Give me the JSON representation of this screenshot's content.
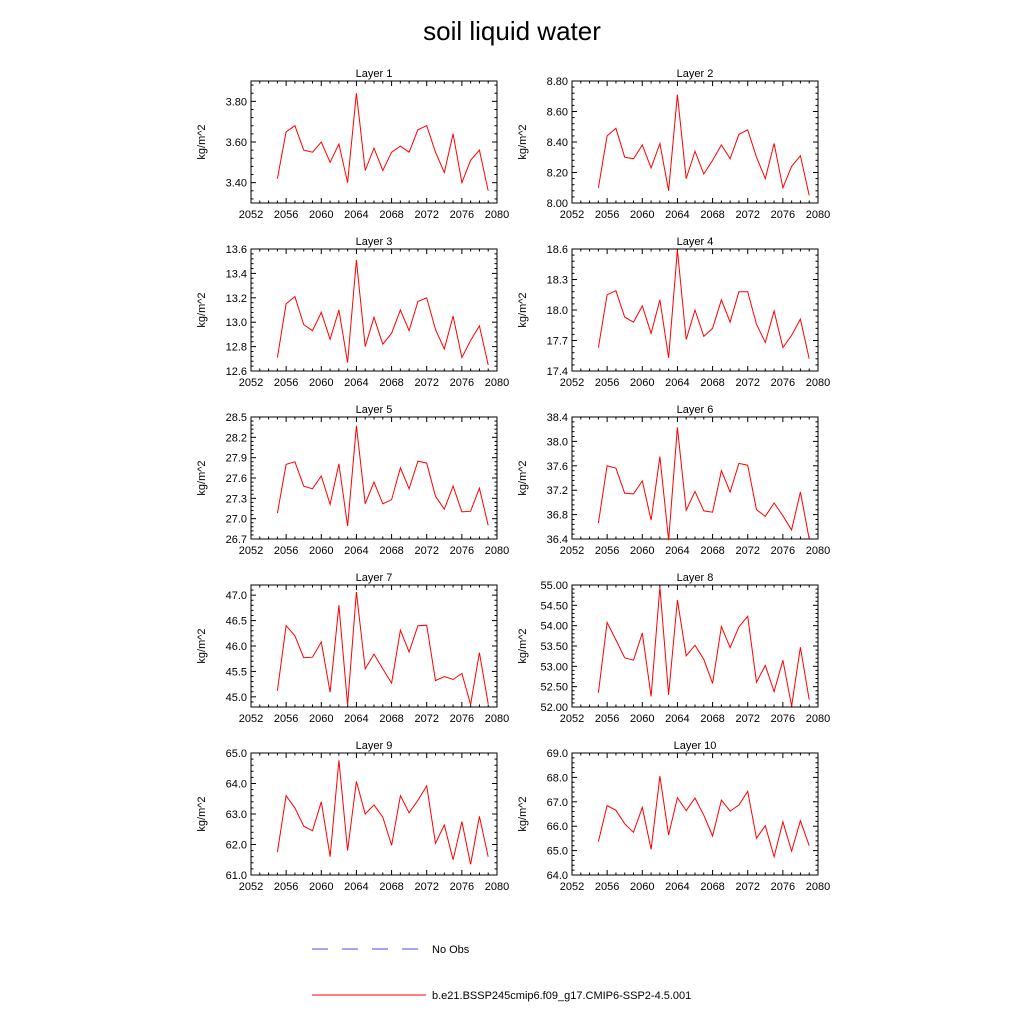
{
  "title": "soil liquid water",
  "legend": {
    "position": "bottom-center",
    "entries": [
      {
        "label": "No Obs",
        "color": "#4a4ae0",
        "style": "dashed"
      },
      {
        "label": "b.e21.BSSP245cmip6.f09_g17.CMIP6-SSP2-4.5.001",
        "color": "#ff0000",
        "style": "solid"
      }
    ]
  },
  "chart_data": [
    {
      "type": "line",
      "title": "Layer 1",
      "ylabel": "kg/m^2",
      "xlim": [
        2052,
        2080
      ],
      "xticks": [
        2052,
        2056,
        2060,
        2064,
        2068,
        2072,
        2076,
        2080
      ],
      "ylim": [
        3.3,
        3.9
      ],
      "yticks": [
        3.4,
        3.6,
        3.8
      ],
      "ydecimals": 2,
      "x": [
        2055,
        2056,
        2057,
        2058,
        2059,
        2060,
        2061,
        2062,
        2063,
        2064,
        2065,
        2066,
        2067,
        2068,
        2069,
        2070,
        2071,
        2072,
        2073,
        2074,
        2075,
        2076,
        2077,
        2078,
        2079
      ],
      "series": [
        {
          "color": "#ff0000",
          "values": [
            3.42,
            3.65,
            3.68,
            3.56,
            3.55,
            3.6,
            3.5,
            3.59,
            3.4,
            3.84,
            3.46,
            3.57,
            3.46,
            3.55,
            3.58,
            3.55,
            3.66,
            3.68,
            3.55,
            3.45,
            3.64,
            3.4,
            3.51,
            3.56,
            3.36
          ]
        }
      ]
    },
    {
      "type": "line",
      "title": "Layer 2",
      "ylabel": "kg/m^2",
      "xlim": [
        2052,
        2080
      ],
      "xticks": [
        2052,
        2056,
        2060,
        2064,
        2068,
        2072,
        2076,
        2080
      ],
      "ylim": [
        8.0,
        8.8
      ],
      "yticks": [
        8.0,
        8.2,
        8.4,
        8.6,
        8.8
      ],
      "ydecimals": 2,
      "x": [
        2055,
        2056,
        2057,
        2058,
        2059,
        2060,
        2061,
        2062,
        2063,
        2064,
        2065,
        2066,
        2067,
        2068,
        2069,
        2070,
        2071,
        2072,
        2073,
        2074,
        2075,
        2076,
        2077,
        2078,
        2079
      ],
      "series": [
        {
          "color": "#ff0000",
          "values": [
            8.1,
            8.44,
            8.49,
            8.3,
            8.29,
            8.38,
            8.23,
            8.39,
            8.08,
            8.71,
            8.16,
            8.34,
            8.19,
            8.28,
            8.38,
            8.29,
            8.45,
            8.48,
            8.3,
            8.16,
            8.39,
            8.1,
            8.24,
            8.31,
            8.05
          ]
        }
      ]
    },
    {
      "type": "line",
      "title": "Layer 3",
      "ylabel": "kg/m^2",
      "xlim": [
        2052,
        2080
      ],
      "xticks": [
        2052,
        2056,
        2060,
        2064,
        2068,
        2072,
        2076,
        2080
      ],
      "ylim": [
        12.6,
        13.6
      ],
      "yticks": [
        12.6,
        12.8,
        13.0,
        13.2,
        13.4,
        13.6
      ],
      "ydecimals": 1,
      "x": [
        2055,
        2056,
        2057,
        2058,
        2059,
        2060,
        2061,
        2062,
        2063,
        2064,
        2065,
        2066,
        2067,
        2068,
        2069,
        2070,
        2071,
        2072,
        2073,
        2074,
        2075,
        2076,
        2077,
        2078,
        2079
      ],
      "series": [
        {
          "color": "#ff0000",
          "values": [
            12.71,
            13.15,
            13.21,
            12.98,
            12.93,
            13.08,
            12.86,
            13.1,
            12.67,
            13.51,
            12.8,
            13.04,
            12.82,
            12.91,
            13.1,
            12.93,
            13.17,
            13.2,
            12.94,
            12.78,
            13.05,
            12.71,
            12.85,
            12.97,
            12.65
          ]
        }
      ]
    },
    {
      "type": "line",
      "title": "Layer 4",
      "ylabel": "kg/m^2",
      "xlim": [
        2052,
        2080
      ],
      "xticks": [
        2052,
        2056,
        2060,
        2064,
        2068,
        2072,
        2076,
        2080
      ],
      "ylim": [
        17.4,
        18.6
      ],
      "yticks": [
        17.4,
        17.7,
        18.0,
        18.3,
        18.6
      ],
      "ydecimals": 1,
      "x": [
        2055,
        2056,
        2057,
        2058,
        2059,
        2060,
        2061,
        2062,
        2063,
        2064,
        2065,
        2066,
        2067,
        2068,
        2069,
        2070,
        2071,
        2072,
        2073,
        2074,
        2075,
        2076,
        2077,
        2078,
        2079
      ],
      "series": [
        {
          "color": "#ff0000",
          "values": [
            17.63,
            18.15,
            18.19,
            17.93,
            17.88,
            18.04,
            17.77,
            18.1,
            17.53,
            18.59,
            17.71,
            18.0,
            17.74,
            17.82,
            18.1,
            17.88,
            18.18,
            18.18,
            17.86,
            17.68,
            17.99,
            17.63,
            17.75,
            17.91,
            17.52
          ]
        }
      ]
    },
    {
      "type": "line",
      "title": "Layer 5",
      "ylabel": "kg/m^2",
      "xlim": [
        2052,
        2080
      ],
      "xticks": [
        2052,
        2056,
        2060,
        2064,
        2068,
        2072,
        2076,
        2080
      ],
      "ylim": [
        26.7,
        28.5
      ],
      "yticks": [
        26.7,
        27.0,
        27.3,
        27.6,
        27.9,
        28.2,
        28.5
      ],
      "ydecimals": 1,
      "x": [
        2055,
        2056,
        2057,
        2058,
        2059,
        2060,
        2061,
        2062,
        2063,
        2064,
        2065,
        2066,
        2067,
        2068,
        2069,
        2070,
        2071,
        2072,
        2073,
        2074,
        2075,
        2076,
        2077,
        2078,
        2079
      ],
      "series": [
        {
          "color": "#ff0000",
          "values": [
            27.08,
            27.8,
            27.84,
            27.48,
            27.44,
            27.63,
            27.21,
            27.81,
            26.89,
            28.37,
            27.22,
            27.54,
            27.22,
            27.28,
            27.75,
            27.44,
            27.85,
            27.82,
            27.33,
            27.14,
            27.48,
            27.1,
            27.11,
            27.45,
            26.9
          ]
        }
      ]
    },
    {
      "type": "line",
      "title": "Layer 6",
      "ylabel": "kg/m^2",
      "xlim": [
        2052,
        2080
      ],
      "xticks": [
        2052,
        2056,
        2060,
        2064,
        2068,
        2072,
        2076,
        2080
      ],
      "ylim": [
        36.4,
        38.4
      ],
      "yticks": [
        36.4,
        36.8,
        37.2,
        37.6,
        38.0,
        38.4
      ],
      "ydecimals": 1,
      "x": [
        2055,
        2056,
        2057,
        2058,
        2059,
        2060,
        2061,
        2062,
        2063,
        2064,
        2065,
        2066,
        2067,
        2068,
        2069,
        2070,
        2071,
        2072,
        2073,
        2074,
        2075,
        2076,
        2077,
        2078,
        2079
      ],
      "series": [
        {
          "color": "#ff0000",
          "values": [
            36.66,
            37.6,
            37.56,
            37.15,
            37.14,
            37.35,
            36.71,
            37.75,
            36.38,
            38.23,
            36.87,
            37.18,
            36.86,
            36.84,
            37.52,
            37.17,
            37.64,
            37.61,
            36.88,
            36.77,
            36.99,
            36.78,
            36.55,
            37.17,
            36.4
          ]
        }
      ]
    },
    {
      "type": "line",
      "title": "Layer 7",
      "ylabel": "kg/m^2",
      "xlim": [
        2052,
        2080
      ],
      "xticks": [
        2052,
        2056,
        2060,
        2064,
        2068,
        2072,
        2076,
        2080
      ],
      "ylim": [
        44.8,
        47.2
      ],
      "yticks": [
        45.0,
        45.5,
        46.0,
        46.5,
        47.0
      ],
      "ydecimals": 1,
      "x": [
        2055,
        2056,
        2057,
        2058,
        2059,
        2060,
        2061,
        2062,
        2063,
        2064,
        2065,
        2066,
        2067,
        2068,
        2069,
        2070,
        2071,
        2072,
        2073,
        2074,
        2075,
        2076,
        2077,
        2078,
        2079
      ],
      "series": [
        {
          "color": "#ff0000",
          "values": [
            45.12,
            46.4,
            46.2,
            45.77,
            45.78,
            46.08,
            45.09,
            46.8,
            44.84,
            47.06,
            45.55,
            45.84,
            45.55,
            45.27,
            46.31,
            45.88,
            46.4,
            46.41,
            45.32,
            45.4,
            45.34,
            45.46,
            44.85,
            45.87,
            44.86
          ]
        }
      ]
    },
    {
      "type": "line",
      "title": "Layer 8",
      "ylabel": "kg/m^2",
      "xlim": [
        2052,
        2080
      ],
      "xticks": [
        2052,
        2056,
        2060,
        2064,
        2068,
        2072,
        2076,
        2080
      ],
      "ylim": [
        52.0,
        55.0
      ],
      "yticks": [
        52.0,
        52.5,
        53.0,
        53.5,
        54.0,
        54.5,
        55.0
      ],
      "ydecimals": 2,
      "x": [
        2055,
        2056,
        2057,
        2058,
        2059,
        2060,
        2061,
        2062,
        2063,
        2064,
        2065,
        2066,
        2067,
        2068,
        2069,
        2070,
        2071,
        2072,
        2073,
        2074,
        2075,
        2076,
        2077,
        2078,
        2079
      ],
      "series": [
        {
          "color": "#ff0000",
          "values": [
            52.35,
            54.08,
            53.65,
            53.21,
            53.15,
            53.82,
            52.26,
            54.95,
            52.3,
            54.63,
            53.26,
            53.52,
            53.17,
            52.58,
            53.98,
            53.46,
            53.97,
            54.23,
            52.61,
            53.02,
            52.38,
            53.15,
            52.02,
            53.47,
            52.18
          ]
        }
      ]
    },
    {
      "type": "line",
      "title": "Layer 9",
      "ylabel": "kg/m^2",
      "xlim": [
        2052,
        2080
      ],
      "xticks": [
        2052,
        2056,
        2060,
        2064,
        2068,
        2072,
        2076,
        2080
      ],
      "ylim": [
        61.0,
        65.0
      ],
      "yticks": [
        61.0,
        62.0,
        63.0,
        64.0,
        65.0
      ],
      "ydecimals": 1,
      "x": [
        2055,
        2056,
        2057,
        2058,
        2059,
        2060,
        2061,
        2062,
        2063,
        2064,
        2065,
        2066,
        2067,
        2068,
        2069,
        2070,
        2071,
        2072,
        2073,
        2074,
        2075,
        2076,
        2077,
        2078,
        2079
      ],
      "series": [
        {
          "color": "#ff0000",
          "values": [
            61.75,
            63.6,
            63.2,
            62.6,
            62.45,
            63.4,
            61.6,
            64.76,
            61.8,
            64.07,
            63.0,
            63.3,
            62.9,
            61.97,
            63.6,
            63.04,
            63.45,
            63.92,
            62.04,
            62.64,
            61.5,
            62.75,
            61.35,
            62.92,
            61.6
          ]
        }
      ]
    },
    {
      "type": "line",
      "title": "Layer 10",
      "ylabel": "kg/m^2",
      "xlim": [
        2052,
        2080
      ],
      "xticks": [
        2052,
        2056,
        2060,
        2064,
        2068,
        2072,
        2076,
        2080
      ],
      "ylim": [
        64.0,
        69.0
      ],
      "yticks": [
        64.0,
        65.0,
        66.0,
        67.0,
        68.0,
        69.0
      ],
      "ydecimals": 1,
      "x": [
        2055,
        2056,
        2057,
        2058,
        2059,
        2060,
        2061,
        2062,
        2063,
        2064,
        2065,
        2066,
        2067,
        2068,
        2069,
        2070,
        2071,
        2072,
        2073,
        2074,
        2075,
        2076,
        2077,
        2078,
        2079
      ],
      "series": [
        {
          "color": "#ff0000",
          "values": [
            65.37,
            66.85,
            66.65,
            66.1,
            65.75,
            66.77,
            65.05,
            68.05,
            65.64,
            67.17,
            66.64,
            67.15,
            66.45,
            65.6,
            67.07,
            66.62,
            66.87,
            67.43,
            65.51,
            66.02,
            64.75,
            66.18,
            64.98,
            66.22,
            65.2
          ]
        }
      ]
    }
  ]
}
